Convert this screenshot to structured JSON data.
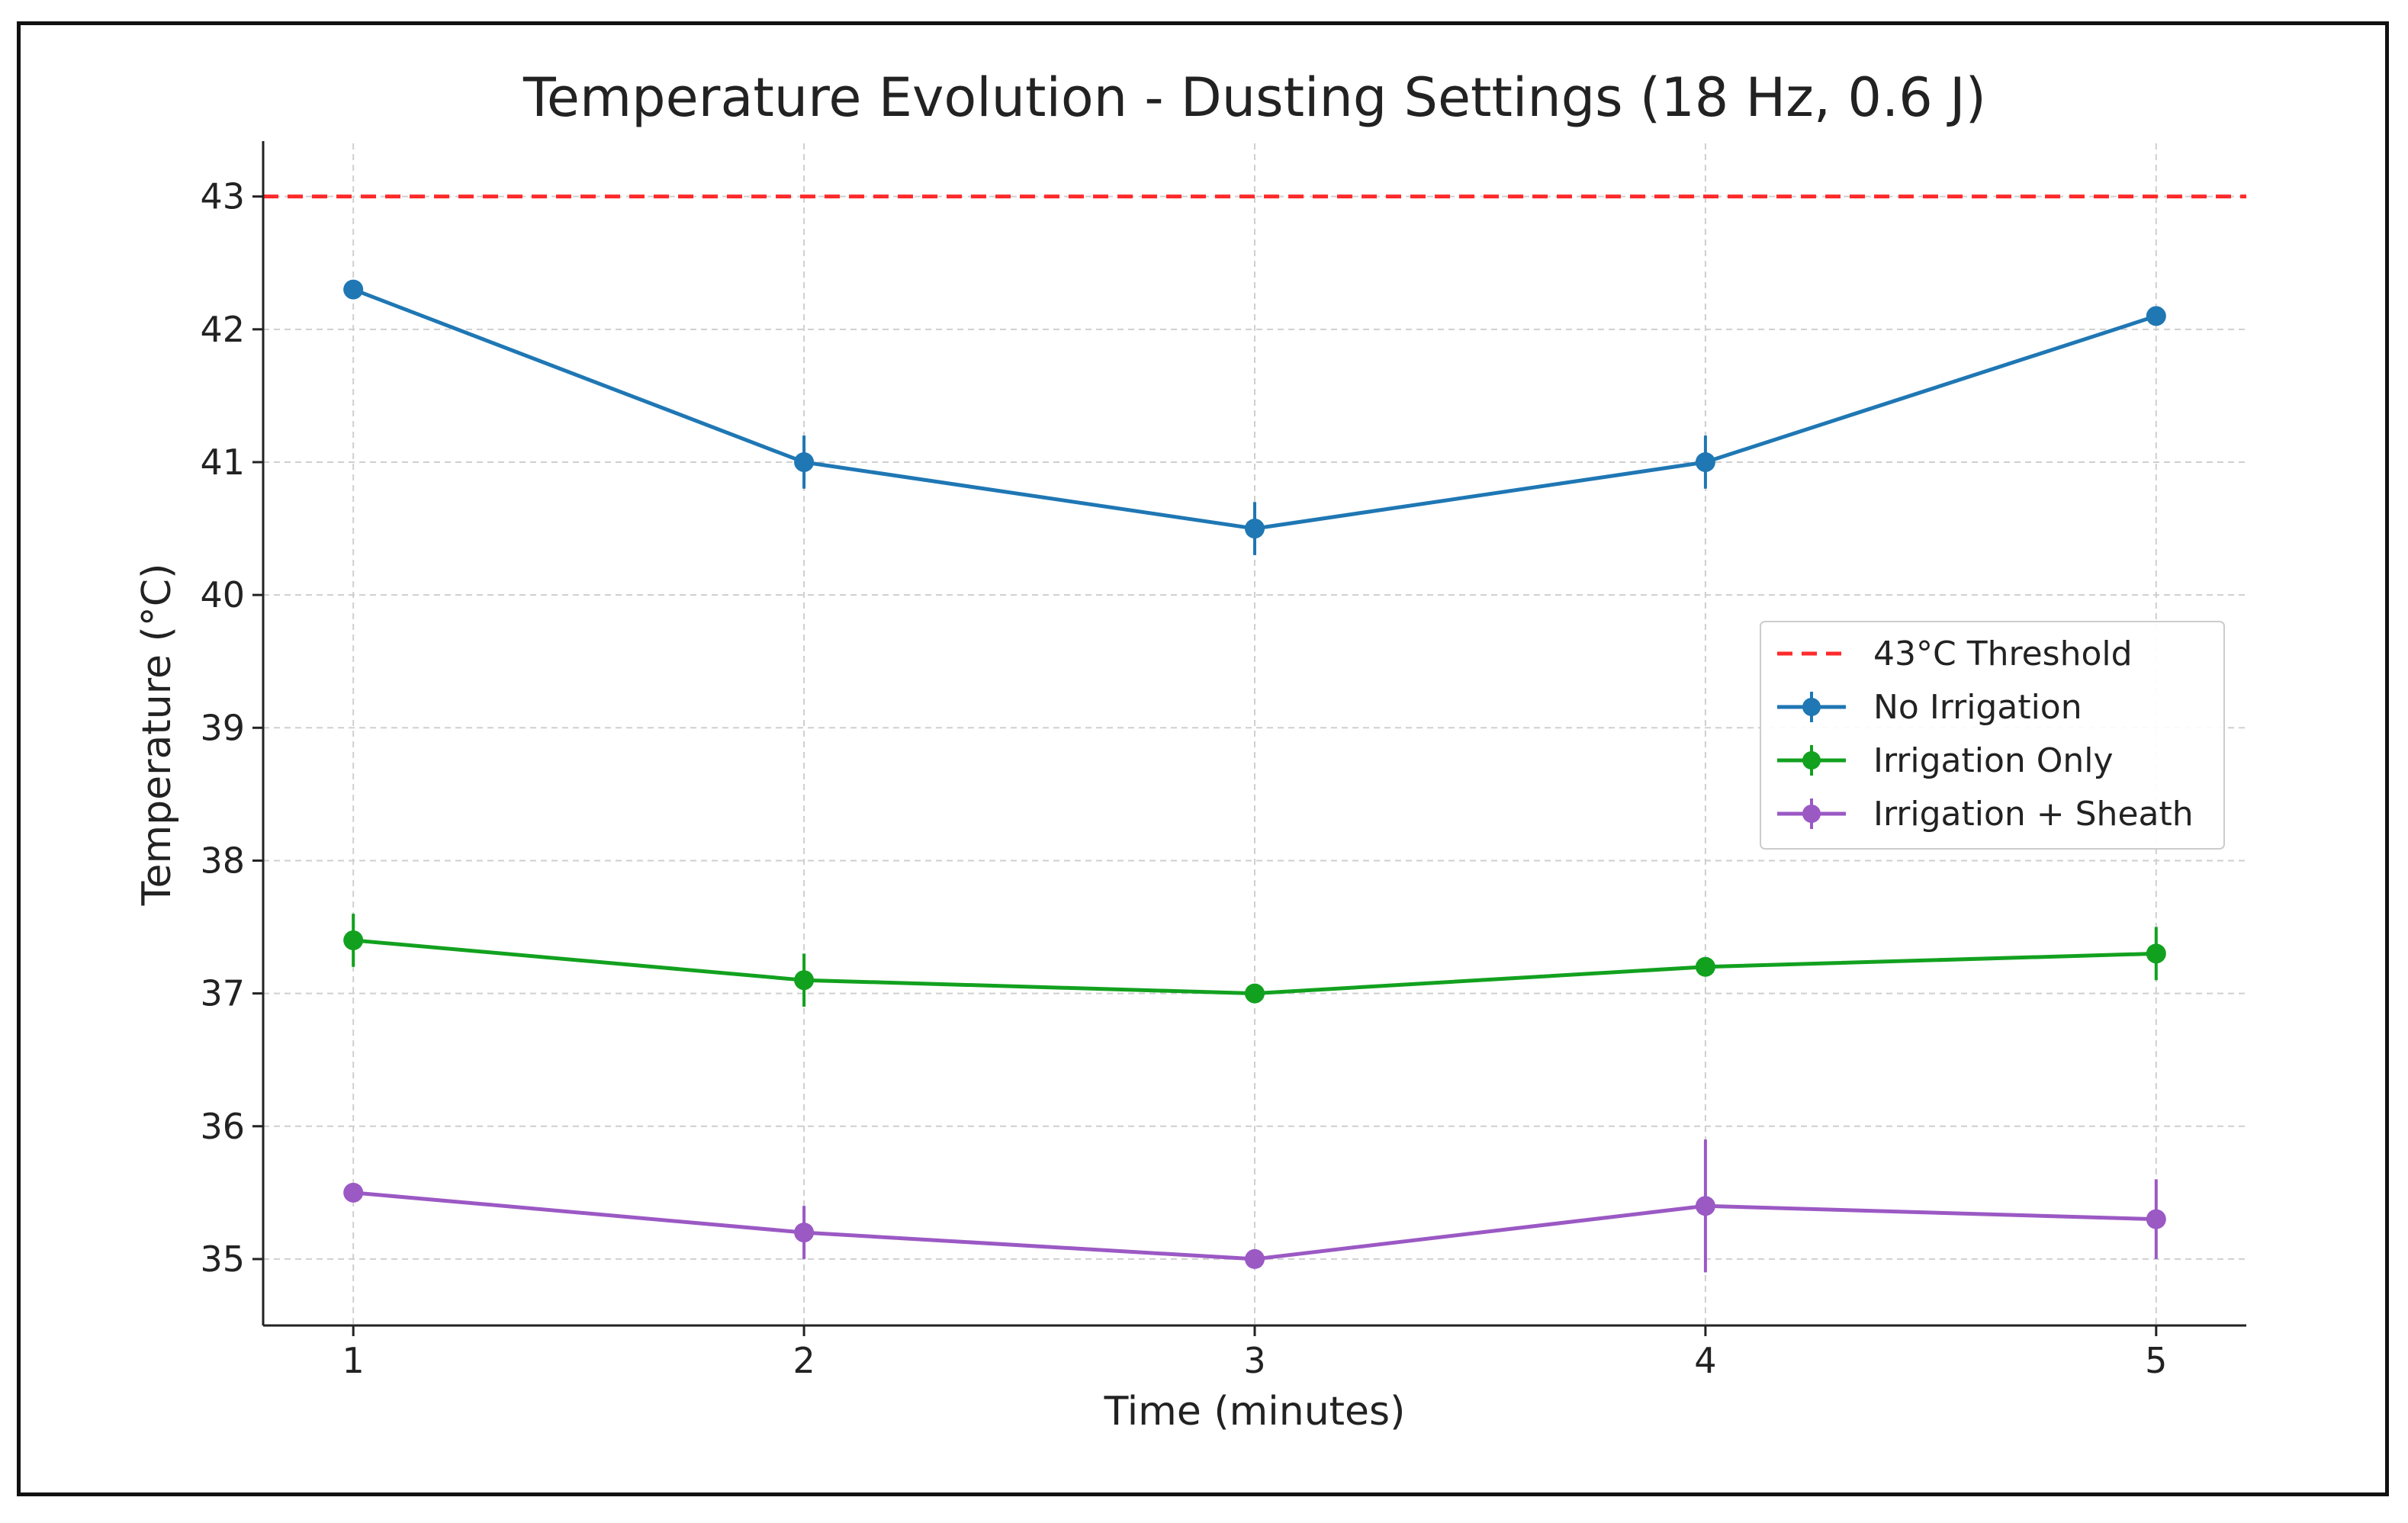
{
  "chart_data": {
    "type": "line",
    "title": "Temperature Evolution - Dusting Settings (18 Hz, 0.6 J)",
    "xlabel": "Time (minutes)",
    "ylabel": "Temperature (°C)",
    "x": [
      1,
      2,
      3,
      4,
      5
    ],
    "xticks": [
      "1",
      "2",
      "3",
      "4",
      "5"
    ],
    "yticks": [
      "35",
      "36",
      "37",
      "38",
      "39",
      "40",
      "41",
      "42",
      "43"
    ],
    "xlim": [
      0.8,
      5.2
    ],
    "ylim": [
      34.5,
      43.4
    ],
    "grid": true,
    "legend_position": "center-right",
    "threshold": {
      "name": "43°C Threshold",
      "value": 43,
      "color": "#ff2a2a",
      "style": "dashed"
    },
    "series": [
      {
        "name": "No Irrigation",
        "color": "#1f77b4",
        "values": [
          42.3,
          41.0,
          40.5,
          41.0,
          42.1
        ],
        "errors": [
          0.05,
          0.2,
          0.2,
          0.2,
          0.05
        ]
      },
      {
        "name": "Irrigation Only",
        "color": "#12a11f",
        "values": [
          37.4,
          37.1,
          37.0,
          37.2,
          37.3
        ],
        "errors": [
          0.2,
          0.2,
          0.05,
          0.05,
          0.2
        ]
      },
      {
        "name": "Irrigation + Sheath",
        "color": "#9b59c4",
        "values": [
          35.5,
          35.2,
          35.0,
          35.4,
          35.3
        ],
        "errors": [
          0.05,
          0.2,
          0.05,
          0.5,
          0.3
        ]
      }
    ]
  }
}
